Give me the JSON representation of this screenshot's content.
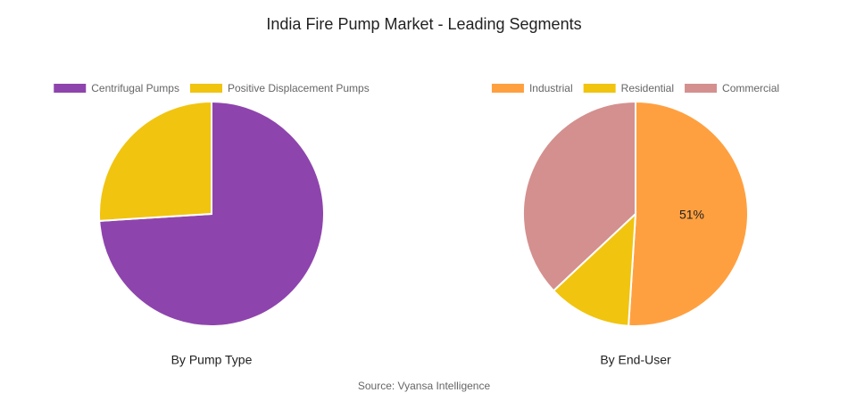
{
  "title": "India Fire Pump Market - Leading Segments",
  "source": "Source: Vyansa Intelligence",
  "chart_data": [
    {
      "type": "pie",
      "title": "By Pump Type",
      "categories": [
        "Centrifugal Pumps",
        "Positive Displacement Pumps"
      ],
      "values": [
        74,
        26
      ],
      "colors": [
        "#8e44ad",
        "#f1c40f"
      ]
    },
    {
      "type": "pie",
      "title": "By End-User",
      "categories": [
        "Industrial",
        "Residential",
        "Commercial"
      ],
      "values": [
        51,
        12,
        37
      ],
      "value_labels": [
        "51%",
        null,
        null
      ],
      "colors": [
        "#ffa040",
        "#f1c40f",
        "#d4908e"
      ]
    }
  ]
}
